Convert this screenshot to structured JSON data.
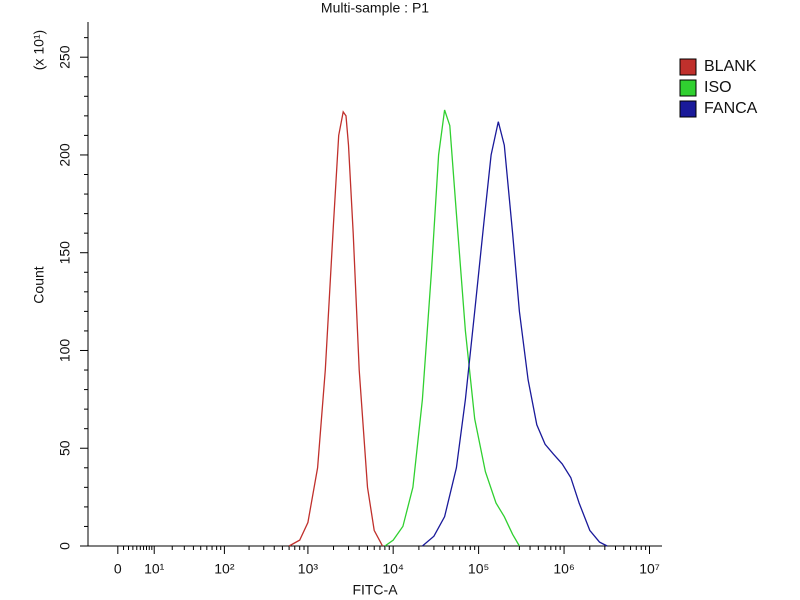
{
  "chart_data": {
    "type": "line",
    "title": "Multi-sample : P1",
    "x_label": "FITC-A",
    "y_label": "Count",
    "y_multiplier": "(x 10¹)",
    "xscale": "symlog",
    "linthresh": 6,
    "xlim": [
      -7.4,
      14000000
    ],
    "xticks": [
      0,
      {
        "value": 10,
        "label": "10¹"
      },
      {
        "value": 100,
        "label": "10²"
      },
      {
        "value": 1000,
        "label": "10³"
      },
      {
        "value": 10000,
        "label": "10⁴"
      },
      {
        "value": 100000,
        "label": "10⁵"
      },
      {
        "value": 1000000,
        "label": "10⁶"
      },
      {
        "value": 10000000,
        "label": "10⁷"
      }
    ],
    "xminorticks": [
      1,
      2,
      3,
      4,
      5,
      6,
      7,
      8,
      9,
      20,
      30,
      40,
      50,
      60,
      70,
      80,
      90,
      200,
      300,
      400,
      500,
      600,
      700,
      800,
      900,
      2000,
      3000,
      4000,
      5000,
      6000,
      7000,
      8000,
      9000,
      20000,
      30000,
      40000,
      50000,
      60000,
      70000,
      80000,
      90000,
      200000,
      300000,
      400000,
      500000,
      600000,
      700000,
      800000,
      900000,
      2000000,
      3000000,
      4000000,
      5000000,
      6000000,
      7000000,
      8000000,
      9000000
    ],
    "ylim": [
      0,
      268
    ],
    "yticks": [
      0,
      50,
      100,
      150,
      200,
      250
    ],
    "yminorticks": [
      10,
      20,
      30,
      40,
      60,
      70,
      80,
      90,
      110,
      120,
      130,
      140,
      160,
      170,
      180,
      190,
      210,
      220,
      230,
      240,
      260
    ],
    "legend": "top-right",
    "series": [
      {
        "name": "BLANK",
        "color": "#c0302c",
        "x": [
          600,
          800,
          1000,
          1300,
          1600,
          2000,
          2300,
          2600,
          2800,
          3000,
          3400,
          4000,
          5000,
          6000,
          7500
        ],
        "values": [
          0,
          3,
          12,
          40,
          90,
          165,
          210,
          222,
          220,
          205,
          160,
          90,
          30,
          8,
          0
        ]
      },
      {
        "name": "ISO",
        "color": "#30d030",
        "x": [
          8000,
          10000,
          13000,
          17000,
          22000,
          28000,
          34000,
          40000,
          46000,
          55000,
          70000,
          90000,
          120000,
          160000,
          200000,
          250000,
          300000
        ],
        "values": [
          0,
          3,
          10,
          30,
          75,
          140,
          200,
          223,
          215,
          170,
          110,
          65,
          38,
          22,
          15,
          6,
          0
        ]
      },
      {
        "name": "FANCA",
        "color": "#1a1a9a",
        "x": [
          22000,
          30000,
          40000,
          55000,
          70000,
          90000,
          115000,
          140000,
          170000,
          200000,
          250000,
          300000,
          380000,
          480000,
          600000,
          750000,
          950000,
          1200000,
          1500000,
          2000000,
          2600000,
          3200000
        ],
        "values": [
          0,
          5,
          15,
          40,
          75,
          120,
          165,
          200,
          217,
          205,
          160,
          120,
          85,
          62,
          52,
          47,
          42,
          35,
          22,
          8,
          2,
          0
        ]
      }
    ]
  }
}
